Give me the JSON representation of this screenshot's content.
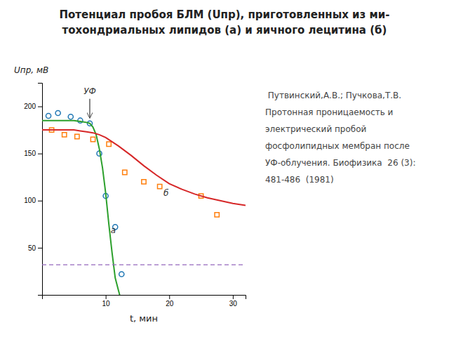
{
  "chart_data": {
    "type": "scatter",
    "title": [
      "Потенциал пробоя БЛМ (Uпр), приготовленных из ми-",
      "тохондриальных липидов (а) и яичного лецитина (б)"
    ],
    "x_label": "t, мин",
    "y_label": "Uпр, мВ",
    "xlim": [
      0,
      32
    ],
    "ylim": [
      0,
      225
    ],
    "xticks": [
      10,
      20,
      30
    ],
    "yticks": [
      50,
      100,
      150,
      200
    ],
    "series": [
      {
        "type": "scatter",
        "marker": "circle",
        "x": [
          1.0,
          2.5,
          4.5,
          6.0,
          7.5,
          9.0,
          10.0,
          11.5,
          12.5
        ],
        "values": [
          190,
          193,
          189,
          185,
          182,
          150,
          105,
          72,
          22
        ]
      },
      {
        "type": "scatter",
        "marker": "square",
        "x": [
          1.5,
          3.5,
          5.5,
          8.0,
          10.5,
          13.0,
          16.0,
          18.5,
          25.0,
          27.5
        ],
        "values": [
          175,
          170,
          168,
          165,
          160,
          130,
          120,
          115,
          105,
          85
        ]
      },
      {
        "type": "line",
        "line_style": "solid",
        "x": [
          0,
          1,
          2,
          3,
          4,
          5,
          6,
          7,
          7.5,
          8,
          8.5,
          9,
          9.5,
          10,
          10.5,
          11,
          11.5,
          12,
          12.2
        ],
        "values": [
          185,
          185,
          185,
          185,
          185,
          185,
          184,
          183,
          182,
          178,
          170,
          155,
          135,
          108,
          75,
          45,
          18,
          5,
          0
        ]
      },
      {
        "type": "line",
        "line_style": "solid",
        "x": [
          0,
          2,
          4,
          5,
          6,
          7,
          8,
          9,
          10,
          12,
          14,
          16,
          18,
          20,
          22,
          24,
          26,
          28,
          30,
          32
        ],
        "values": [
          175,
          175,
          175,
          175,
          174,
          173,
          172,
          170,
          167,
          158,
          148,
          137,
          127,
          118,
          112,
          107,
          103,
          100,
          97,
          95
        ]
      },
      {
        "type": "hline",
        "line_style": "dashed",
        "values": [
          32
        ]
      }
    ],
    "annotations": [
      {
        "text": "УФ",
        "x": 7.5,
        "y": 213,
        "arrow_from": 208,
        "arrow_to": 188
      },
      {
        "text": "а",
        "x": 11.2,
        "y": 68
      },
      {
        "text": "б",
        "x": 19.5,
        "y": 108
      }
    ],
    "reference": [
      " Путвинский,А.В.; Пучкова,Т.В.",
      "Протонная проницаемость и",
      "электрический пробой",
      "фосфолипидных мембран после",
      "УФ-облучения. Биофизика  26 (3):",
      "481-486  (1981)"
    ]
  }
}
